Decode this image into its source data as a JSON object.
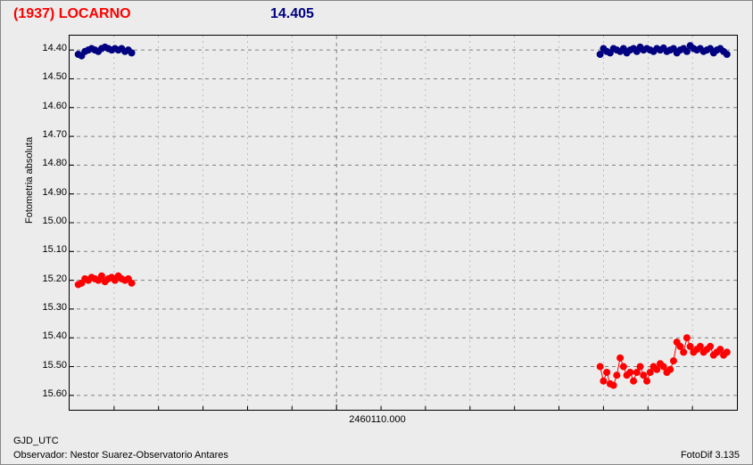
{
  "header": {
    "title": "(1937) LOCARNO",
    "value": "14.405"
  },
  "footer": {
    "line1": "GJD_UTC",
    "line2": "Observador: Nestor Suarez-Observatorio Antares",
    "right": "FotoDif 3.135"
  },
  "chart": {
    "type": "scatter-line",
    "background_color": "#ececec",
    "border_color": "#000000",
    "grid_color": "#808080",
    "grid_dash": "4,4",
    "ylabel": "Fotometria absoluta",
    "xlabel_center": "2460110.000",
    "xlim": [
      0,
      1
    ],
    "ylim": [
      15.65,
      14.35
    ],
    "yticks": [
      14.4,
      14.5,
      14.6,
      14.7,
      14.8,
      14.9,
      15.0,
      15.1,
      15.2,
      15.3,
      15.4,
      15.5,
      15.6
    ],
    "ytick_labels": [
      "14.40",
      "14.50",
      "14.60",
      "14.70",
      "14.80",
      "14.90",
      "15.00",
      "15.10",
      "15.20",
      "15.30",
      "15.40",
      "15.50",
      "15.60"
    ],
    "xticks_major": [
      0.4
    ],
    "xticks_minor": [
      0.0667,
      0.1333,
      0.2,
      0.2667,
      0.3333,
      0.4667,
      0.5333,
      0.6,
      0.6667,
      0.7333,
      0.8,
      0.8667,
      0.9333
    ],
    "ytick_fontsize": 11,
    "label_fontsize": 11,
    "series": [
      {
        "name": "comp",
        "color": "#000080",
        "marker_size": 3.5,
        "line_width": 1,
        "segments": [
          {
            "x": [
              0.013,
              0.018,
              0.023,
              0.028,
              0.033,
              0.038,
              0.043,
              0.048,
              0.053,
              0.058,
              0.063,
              0.068,
              0.073,
              0.078,
              0.083,
              0.088,
              0.093
            ],
            "y": [
              14.415,
              14.42,
              14.405,
              14.4,
              14.395,
              14.4,
              14.405,
              14.395,
              14.39,
              14.395,
              14.4,
              14.395,
              14.4,
              14.395,
              14.405,
              14.4,
              14.41
            ]
          },
          {
            "x": [
              0.795,
              0.8,
              0.805,
              0.81,
              0.815,
              0.82,
              0.825,
              0.83,
              0.835,
              0.84,
              0.845,
              0.85,
              0.855,
              0.86,
              0.865,
              0.87,
              0.875,
              0.88,
              0.885,
              0.89,
              0.895,
              0.9,
              0.905,
              0.91,
              0.915,
              0.92,
              0.925,
              0.93,
              0.935,
              0.94,
              0.945,
              0.95,
              0.955,
              0.96,
              0.965,
              0.97,
              0.975,
              0.98,
              0.985
            ],
            "y": [
              14.415,
              14.395,
              14.405,
              14.41,
              14.395,
              14.4,
              14.405,
              14.395,
              14.41,
              14.4,
              14.395,
              14.405,
              14.39,
              14.4,
              14.395,
              14.4,
              14.405,
              14.395,
              14.4,
              14.393,
              14.405,
              14.4,
              14.395,
              14.41,
              14.4,
              14.395,
              14.405,
              14.385,
              14.395,
              14.4,
              14.395,
              14.405,
              14.4,
              14.395,
              14.41,
              14.4,
              14.395,
              14.405,
              14.415
            ]
          }
        ]
      },
      {
        "name": "target",
        "color": "#ff0000",
        "marker_size": 3.5,
        "line_width": 1,
        "segments": [
          {
            "x": [
              0.013,
              0.018,
              0.023,
              0.028,
              0.033,
              0.038,
              0.043,
              0.048,
              0.053,
              0.058,
              0.063,
              0.068,
              0.073,
              0.078,
              0.083,
              0.088,
              0.093
            ],
            "y": [
              15.215,
              15.21,
              15.195,
              15.2,
              15.19,
              15.195,
              15.2,
              15.185,
              15.205,
              15.195,
              15.19,
              15.2,
              15.185,
              15.195,
              15.2,
              15.195,
              15.21
            ]
          },
          {
            "x": [
              0.795,
              0.8,
              0.805,
              0.81,
              0.815,
              0.82,
              0.825,
              0.83,
              0.835,
              0.84,
              0.845,
              0.85,
              0.855,
              0.86,
              0.865,
              0.87,
              0.875,
              0.88,
              0.885,
              0.89,
              0.895,
              0.9,
              0.905,
              0.91,
              0.915,
              0.92,
              0.925,
              0.93,
              0.935,
              0.94,
              0.945,
              0.95,
              0.955,
              0.96,
              0.965,
              0.97,
              0.975,
              0.98,
              0.985
            ],
            "y": [
              15.5,
              15.55,
              15.52,
              15.56,
              15.565,
              15.53,
              15.47,
              15.5,
              15.53,
              15.52,
              15.55,
              15.52,
              15.5,
              15.53,
              15.55,
              15.52,
              15.5,
              15.51,
              15.49,
              15.5,
              15.52,
              15.51,
              15.48,
              15.415,
              15.43,
              15.45,
              15.4,
              15.43,
              15.45,
              15.44,
              15.43,
              15.45,
              15.44,
              15.43,
              15.46,
              15.45,
              15.44,
              15.46,
              15.45
            ]
          }
        ]
      }
    ]
  }
}
